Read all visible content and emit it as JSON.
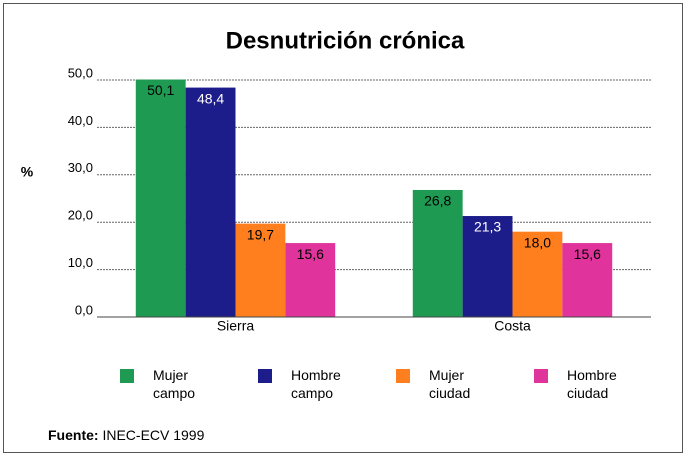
{
  "chart_data": {
    "type": "bar",
    "title": "Desnutrición crónica",
    "ylabel": "%",
    "categories": [
      "Sierra",
      "Costa"
    ],
    "series": [
      {
        "name": "Mujer campo",
        "color": "#1f9a52",
        "values": [
          50.1,
          26.8
        ],
        "value_labels": [
          "50,1",
          "26,8"
        ]
      },
      {
        "name": "Hombre campo",
        "color": "#1c1c8a",
        "values": [
          48.4,
          21.3
        ],
        "value_labels": [
          "48,4",
          "21,3"
        ]
      },
      {
        "name": "Mujer ciudad",
        "color": "#ff7f1e",
        "values": [
          19.7,
          18.0
        ],
        "value_labels": [
          "19,7",
          "18,0"
        ]
      },
      {
        "name": "Hombre ciudad",
        "color": "#e0349c",
        "values": [
          15.6,
          15.6
        ],
        "value_labels": [
          "15,6",
          "15,6"
        ]
      }
    ],
    "ylim": [
      0,
      50
    ],
    "yticks": [
      {
        "value": 0,
        "label": "0,0"
      },
      {
        "value": 10,
        "label": "10,0"
      },
      {
        "value": 20,
        "label": "20,0"
      },
      {
        "value": 30,
        "label": "30,0"
      },
      {
        "value": 40,
        "label": "40,0"
      },
      {
        "value": 50,
        "label": "50,0"
      }
    ],
    "grid": true,
    "legend": "bottom",
    "source_label": "Fuente:",
    "source": "INEC-ECV 1999"
  }
}
